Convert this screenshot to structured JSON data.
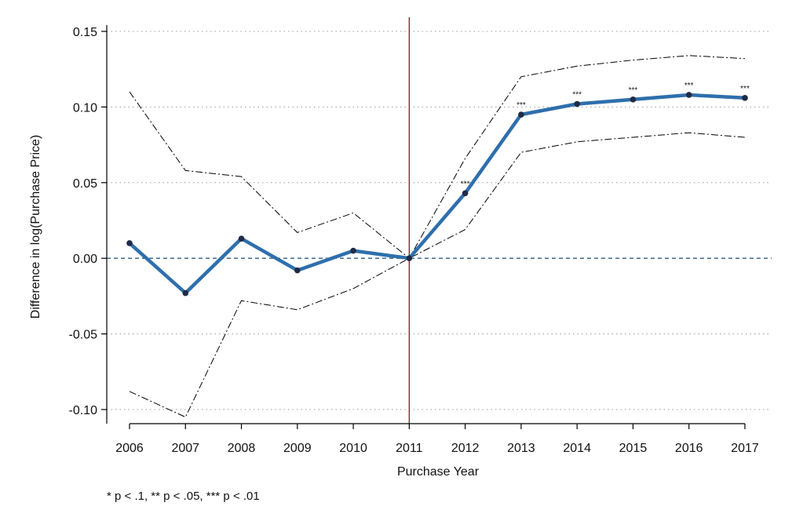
{
  "chart_data": {
    "type": "line",
    "title": "",
    "xlabel": "Purchase Year",
    "ylabel": "Difference in log(Purchase Price)",
    "x": [
      2006,
      2007,
      2008,
      2009,
      2010,
      2011,
      2012,
      2013,
      2014,
      2015,
      2016,
      2017
    ],
    "x_tick_labels": [
      "2006",
      "2007",
      "2008",
      "2009",
      "2010",
      "2011",
      "2012",
      "2013",
      "2014",
      "2015",
      "2016",
      "2017"
    ],
    "y_ticks": [
      -0.1,
      -0.05,
      0.0,
      0.05,
      0.1,
      0.15
    ],
    "y_tick_labels": [
      "-0.10",
      "-0.05",
      "0.00",
      "0.05",
      "0.10",
      "0.15"
    ],
    "xlim": [
      2006,
      2017
    ],
    "ylim": [
      -0.105,
      0.15
    ],
    "grid": "horizontal dotted",
    "series": [
      {
        "role": "estimate",
        "values": [
          0.01,
          -0.023,
          0.013,
          -0.008,
          0.005,
          0.0,
          0.043,
          0.095,
          0.102,
          0.105,
          0.108,
          0.106
        ],
        "color": "#2e6fac"
      },
      {
        "role": "upper-ci",
        "values": [
          0.11,
          0.058,
          0.054,
          0.017,
          0.03,
          0.0,
          0.066,
          0.12,
          0.127,
          0.131,
          0.134,
          0.132
        ],
        "color": "#000000"
      },
      {
        "role": "lower-ci",
        "values": [
          -0.088,
          -0.105,
          -0.028,
          -0.034,
          -0.02,
          0.0,
          0.019,
          0.07,
          0.077,
          0.08,
          0.083,
          0.08
        ],
        "color": "#000000"
      }
    ],
    "significance_labels": [
      "",
      "",
      "",
      "",
      "",
      "",
      "***",
      "***",
      "***",
      "***",
      "***",
      "***"
    ],
    "reference_lines": {
      "vertical_x": 2011,
      "vertical_color": "#8b1a2b",
      "horizontal_y": 0,
      "horizontal_color": "#2e5f8a"
    },
    "note": "* p < .1, ** p < .05, *** p < .01"
  }
}
